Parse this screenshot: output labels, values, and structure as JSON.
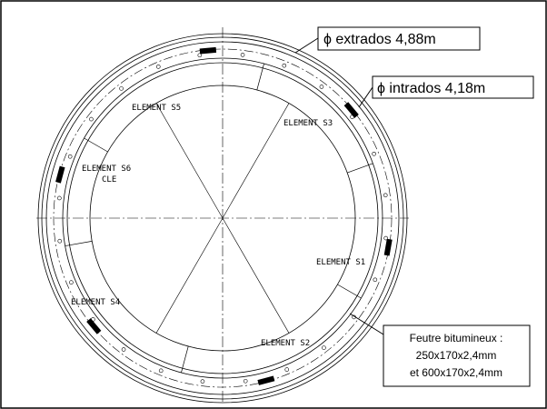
{
  "labels": {
    "extrados": "ϕ extrados 4,88m",
    "intrados": "ϕ intrados 4,18m"
  },
  "elements": [
    {
      "name": "ELEMENT S5"
    },
    {
      "name": "ELEMENT S3"
    },
    {
      "name": "ELEMENT S6",
      "sub": "CLE"
    },
    {
      "name": "ELEMENT S1"
    },
    {
      "name": "ELEMENT S4"
    },
    {
      "name": "ELEMENT S2"
    }
  ],
  "note": [
    "Feutre bitumineux :",
    "250x170x2,4mm",
    "et 600x170x2,4mm"
  ]
}
